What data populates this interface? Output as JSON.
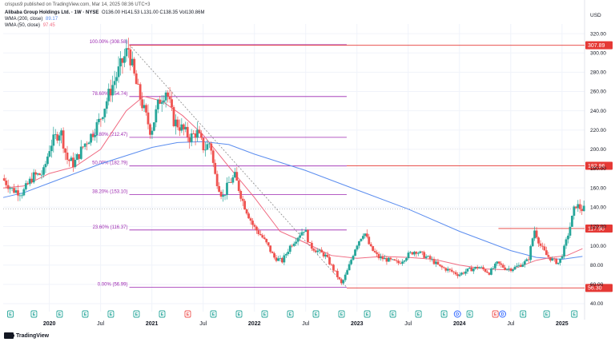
{
  "header": {
    "published": "crispus9 published on TradingView.com, Mar 14, 2025 08:36 UTC+3",
    "currency": "USD"
  },
  "legend": {
    "symbol": "Alibaba Group Holdings Ltd. · 1W · NYSE",
    "ohlc": "O136.00 H141.53 L131.00 C138.35 Vol130.86M",
    "wma200_label": "WMA (200, close)",
    "wma200_value": "89.17",
    "wma50_label": "WMA (50, close)",
    "wma50_value": "97.45"
  },
  "footer": {
    "brand": "TradingView"
  },
  "colors": {
    "up": "#26a69a",
    "down": "#ef5350",
    "wma200": "#5b8def",
    "wma50": "#f06b82",
    "fib": "#9c27b0",
    "redline": "#e53935",
    "badge": "#e53935",
    "grid": "#f0f3fa"
  },
  "chart_data": {
    "type": "candlestick",
    "title": "Alibaba Group Holdings Ltd. · 1W · NYSE",
    "ylabel": "USD",
    "ylim": [
      40,
      330
    ],
    "y_ticks": [
      "320.00",
      "300.00",
      "280.00",
      "260.00",
      "240.00",
      "220.00",
      "200.00",
      "180.00",
      "160.00",
      "140.00",
      "120.00",
      "100.00",
      "80.00",
      "60.00",
      "40.00"
    ],
    "x_ticks": [
      {
        "label": "2020",
        "t": 2020.0,
        "bold": true
      },
      {
        "label": "Jul",
        "t": 2020.5,
        "bold": false
      },
      {
        "label": "2021",
        "t": 2021.0,
        "bold": true
      },
      {
        "label": "Jul",
        "t": 2021.5,
        "bold": false
      },
      {
        "label": "2022",
        "t": 2022.0,
        "bold": true
      },
      {
        "label": "Jul",
        "t": 2022.5,
        "bold": false
      },
      {
        "label": "2023",
        "t": 2023.0,
        "bold": true
      },
      {
        "label": "Jul",
        "t": 2023.5,
        "bold": false
      },
      {
        "label": "2024",
        "t": 2024.0,
        "bold": true
      },
      {
        "label": "Jul",
        "t": 2024.5,
        "bold": false
      },
      {
        "label": "2025",
        "t": 2025.0,
        "bold": true
      }
    ],
    "x_range": [
      2019.55,
      2025.22
    ],
    "price_path": [
      [
        2019.55,
        170
      ],
      [
        2019.65,
        158
      ],
      [
        2019.75,
        155
      ],
      [
        2019.85,
        172
      ],
      [
        2019.95,
        175
      ],
      [
        2020.02,
        205
      ],
      [
        2020.12,
        220
      ],
      [
        2020.18,
        190
      ],
      [
        2020.25,
        185
      ],
      [
        2020.35,
        205
      ],
      [
        2020.42,
        215
      ],
      [
        2020.5,
        230
      ],
      [
        2020.6,
        260
      ],
      [
        2020.7,
        285
      ],
      [
        2020.78,
        305
      ],
      [
        2020.85,
        270
      ],
      [
        2020.92,
        245
      ],
      [
        2021.0,
        218
      ],
      [
        2021.08,
        250
      ],
      [
        2021.15,
        262
      ],
      [
        2021.22,
        230
      ],
      [
        2021.3,
        222
      ],
      [
        2021.38,
        212
      ],
      [
        2021.45,
        218
      ],
      [
        2021.52,
        200
      ],
      [
        2021.58,
        208
      ],
      [
        2021.62,
        175
      ],
      [
        2021.7,
        150
      ],
      [
        2021.76,
        165
      ],
      [
        2021.82,
        172
      ],
      [
        2021.9,
        145
      ],
      [
        2022.0,
        120
      ],
      [
        2022.08,
        110
      ],
      [
        2022.14,
        100
      ],
      [
        2022.2,
        88
      ],
      [
        2022.28,
        84
      ],
      [
        2022.36,
        100
      ],
      [
        2022.45,
        112
      ],
      [
        2022.5,
        118
      ],
      [
        2022.55,
        100
      ],
      [
        2022.62,
        95
      ],
      [
        2022.7,
        90
      ],
      [
        2022.8,
        72
      ],
      [
        2022.86,
        60
      ],
      [
        2022.92,
        75
      ],
      [
        2023.0,
        100
      ],
      [
        2023.08,
        115
      ],
      [
        2023.14,
        98
      ],
      [
        2023.22,
        88
      ],
      [
        2023.32,
        85
      ],
      [
        2023.42,
        82
      ],
      [
        2023.5,
        90
      ],
      [
        2023.58,
        95
      ],
      [
        2023.66,
        90
      ],
      [
        2023.74,
        85
      ],
      [
        2023.82,
        78
      ],
      [
        2023.9,
        75
      ],
      [
        2024.0,
        70
      ],
      [
        2024.1,
        75
      ],
      [
        2024.2,
        78
      ],
      [
        2024.3,
        72
      ],
      [
        2024.38,
        82
      ],
      [
        2024.45,
        77
      ],
      [
        2024.52,
        76
      ],
      [
        2024.6,
        80
      ],
      [
        2024.68,
        85
      ],
      [
        2024.74,
        117
      ],
      [
        2024.8,
        100
      ],
      [
        2024.86,
        90
      ],
      [
        2024.92,
        85
      ],
      [
        2024.98,
        82
      ],
      [
        2025.04,
        100
      ],
      [
        2025.1,
        125
      ],
      [
        2025.14,
        143
      ],
      [
        2025.2,
        138
      ]
    ],
    "wma200_path": [
      [
        2019.55,
        150
      ],
      [
        2019.75,
        155
      ],
      [
        2020.0,
        165
      ],
      [
        2020.5,
        185
      ],
      [
        2021.0,
        202
      ],
      [
        2021.25,
        207
      ],
      [
        2021.5,
        208
      ],
      [
        2021.75,
        205
      ],
      [
        2022.0,
        195
      ],
      [
        2022.5,
        178
      ],
      [
        2023.0,
        158
      ],
      [
        2023.5,
        138
      ],
      [
        2024.0,
        115
      ],
      [
        2024.5,
        95
      ],
      [
        2024.75,
        88
      ],
      [
        2025.0,
        86
      ],
      [
        2025.2,
        89
      ]
    ],
    "wma50_path": [
      [
        2019.55,
        160
      ],
      [
        2019.75,
        162
      ],
      [
        2020.0,
        175
      ],
      [
        2020.25,
        182
      ],
      [
        2020.5,
        200
      ],
      [
        2020.75,
        240
      ],
      [
        2020.92,
        255
      ],
      [
        2021.1,
        250
      ],
      [
        2021.3,
        235
      ],
      [
        2021.5,
        215
      ],
      [
        2021.75,
        182
      ],
      [
        2022.0,
        150
      ],
      [
        2022.25,
        115
      ],
      [
        2022.5,
        103
      ],
      [
        2022.75,
        90
      ],
      [
        2023.0,
        87
      ],
      [
        2023.25,
        89
      ],
      [
        2023.5,
        88
      ],
      [
        2023.75,
        86
      ],
      [
        2024.0,
        80
      ],
      [
        2024.25,
        76
      ],
      [
        2024.5,
        75
      ],
      [
        2024.75,
        85
      ],
      [
        2024.9,
        88
      ],
      [
        2025.05,
        90
      ],
      [
        2025.2,
        97
      ]
    ],
    "fib_levels": [
      {
        "label": "100.00% (308.58)",
        "price": 308.58
      },
      {
        "label": "78.60% (254.74)",
        "price": 254.74
      },
      {
        "label": "61.80% (212.47)",
        "price": 212.47
      },
      {
        "label": "50.00% (182.79)",
        "price": 182.79
      },
      {
        "label": "38.20% (153.10)",
        "price": 153.1
      },
      {
        "label": "23.60% (116.37)",
        "price": 116.37
      },
      {
        "label": "0.00% (56.99)",
        "price": 56.99
      }
    ],
    "fib_range": [
      2020.78,
      2022.9
    ],
    "red_lines": [
      {
        "price": 307.89,
        "label": "307.89",
        "from": 2020.78
      },
      {
        "price": 182.96,
        "label": "182.96",
        "from": 2022.9
      },
      {
        "price": 117.9,
        "label": "117.90",
        "from": 2024.38
      },
      {
        "price": 56.3,
        "label": "56.30",
        "from": 2022.9
      }
    ],
    "current_price": 138.35,
    "trendline": [
      [
        2020.78,
        308.58
      ],
      [
        2022.9,
        56.99
      ]
    ],
    "events": [
      {
        "t": 2019.62,
        "type": "E"
      },
      {
        "t": 2019.85,
        "type": "E"
      },
      {
        "t": 2020.1,
        "type": "E"
      },
      {
        "t": 2020.35,
        "type": "E"
      },
      {
        "t": 2020.6,
        "type": "E"
      },
      {
        "t": 2020.85,
        "type": "E"
      },
      {
        "t": 2021.1,
        "type": "E"
      },
      {
        "t": 2021.35,
        "type": "E",
        "neg": true
      },
      {
        "t": 2021.6,
        "type": "E"
      },
      {
        "t": 2021.85,
        "type": "E"
      },
      {
        "t": 2022.1,
        "type": "E"
      },
      {
        "t": 2022.35,
        "type": "E"
      },
      {
        "t": 2022.6,
        "type": "E"
      },
      {
        "t": 2022.85,
        "type": "E"
      },
      {
        "t": 2023.1,
        "type": "E"
      },
      {
        "t": 2023.35,
        "type": "E"
      },
      {
        "t": 2023.6,
        "type": "E"
      },
      {
        "t": 2023.85,
        "type": "E"
      },
      {
        "t": 2023.98,
        "type": "D"
      },
      {
        "t": 2024.1,
        "type": "E"
      },
      {
        "t": 2024.35,
        "type": "E",
        "neg": true
      },
      {
        "t": 2024.42,
        "type": "D"
      },
      {
        "t": 2024.62,
        "type": "E"
      },
      {
        "t": 2024.85,
        "type": "E"
      },
      {
        "t": 2025.12,
        "type": "E"
      }
    ]
  }
}
